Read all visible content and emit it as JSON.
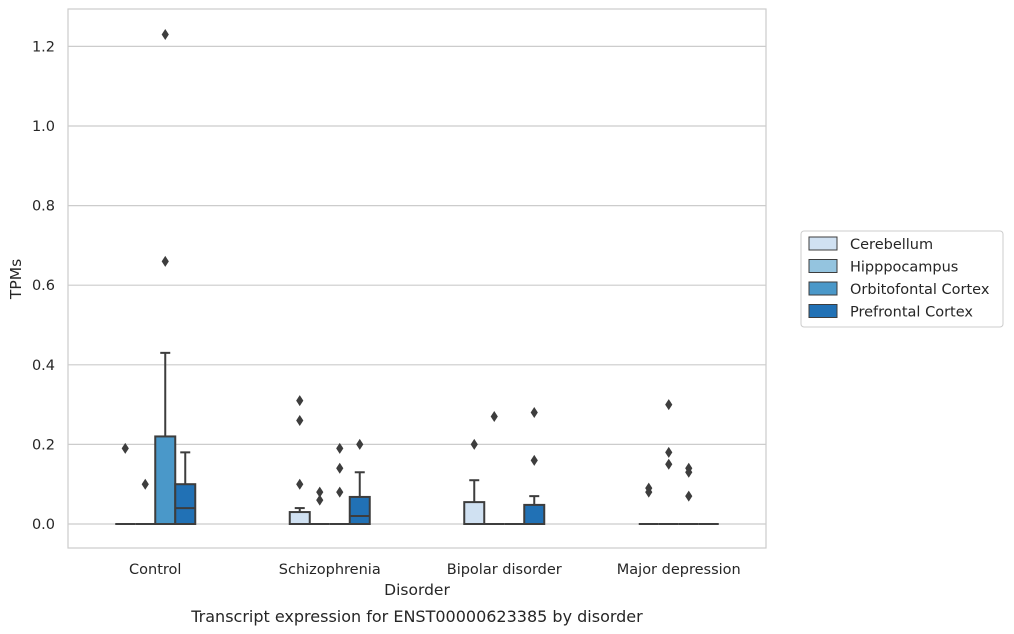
{
  "chart_data": {
    "type": "box",
    "xlabel": "Disorder",
    "ylabel": "TPMs",
    "caption": "Transcript expression for ENST00000623385 by disorder",
    "categories": [
      "Control",
      "Schizophrenia",
      "Bipolar disorder",
      "Major depression"
    ],
    "ylim": [
      -0.06,
      1.29
    ],
    "yticks": [
      0.0,
      0.2,
      0.4,
      0.6,
      0.8,
      1.0,
      1.2
    ],
    "ytick_labels": [
      "0.0",
      "0.2",
      "0.4",
      "0.6",
      "0.8",
      "1.0",
      "1.2"
    ],
    "grid": "horizontal",
    "legend_position": "right",
    "series": [
      {
        "name": "Cerebellum",
        "color": "#d0e1f2",
        "boxes": [
          {
            "category": "Control",
            "q1": 0.0,
            "median": 0.0,
            "q3": 0.0,
            "whisker_low": 0.0,
            "whisker_high": 0.0,
            "outliers": [
              0.19
            ]
          },
          {
            "category": "Schizophrenia",
            "q1": 0.0,
            "median": 0.0,
            "q3": 0.03,
            "whisker_low": 0.0,
            "whisker_high": 0.04,
            "outliers": [
              0.31,
              0.26,
              0.1
            ]
          },
          {
            "category": "Bipolar disorder",
            "q1": 0.0,
            "median": 0.0,
            "q3": 0.055,
            "whisker_low": 0.0,
            "whisker_high": 0.11,
            "outliers": [
              0.2
            ]
          },
          {
            "category": "Major depression",
            "q1": 0.0,
            "median": 0.0,
            "q3": 0.0,
            "whisker_low": 0.0,
            "whisker_high": 0.0,
            "outliers": [
              0.09,
              0.08
            ]
          }
        ]
      },
      {
        "name": "Hipppocampus",
        "color": "#94c4df",
        "boxes": [
          {
            "category": "Control",
            "q1": 0.0,
            "median": 0.0,
            "q3": 0.0,
            "whisker_low": 0.0,
            "whisker_high": 0.0,
            "outliers": [
              0.1
            ]
          },
          {
            "category": "Schizophrenia",
            "q1": 0.0,
            "median": 0.0,
            "q3": 0.0,
            "whisker_low": 0.0,
            "whisker_high": 0.0,
            "outliers": [
              0.08,
              0.06
            ]
          },
          {
            "category": "Bipolar disorder",
            "q1": 0.0,
            "median": 0.0,
            "q3": 0.0,
            "whisker_low": 0.0,
            "whisker_high": 0.0,
            "outliers": [
              0.27
            ]
          },
          {
            "category": "Major depression",
            "q1": 0.0,
            "median": 0.0,
            "q3": 0.0,
            "whisker_low": 0.0,
            "whisker_high": 0.0,
            "outliers": [
              0.3,
              0.18,
              0.15
            ]
          }
        ]
      },
      {
        "name": "Orbitofontal Cortex",
        "color": "#4a98c9",
        "boxes": [
          {
            "category": "Control",
            "q1": 0.0,
            "median": 0.0,
            "q3": 0.22,
            "whisker_low": 0.0,
            "whisker_high": 0.43,
            "outliers": [
              1.23,
              0.66
            ]
          },
          {
            "category": "Schizophrenia",
            "q1": 0.0,
            "median": 0.0,
            "q3": 0.0,
            "whisker_low": 0.0,
            "whisker_high": 0.0,
            "outliers": [
              0.19,
              0.14,
              0.08
            ]
          },
          {
            "category": "Bipolar disorder",
            "q1": 0.0,
            "median": 0.0,
            "q3": 0.0,
            "whisker_low": 0.0,
            "whisker_high": 0.0,
            "outliers": []
          },
          {
            "category": "Major depression",
            "q1": 0.0,
            "median": 0.0,
            "q3": 0.0,
            "whisker_low": 0.0,
            "whisker_high": 0.0,
            "outliers": [
              0.14,
              0.13,
              0.07
            ]
          }
        ]
      },
      {
        "name": "Prefrontal Cortex",
        "color": "#2171b5",
        "boxes": [
          {
            "category": "Control",
            "q1": 0.0,
            "median": 0.04,
            "q3": 0.1,
            "whisker_low": 0.0,
            "whisker_high": 0.18,
            "outliers": []
          },
          {
            "category": "Schizophrenia",
            "q1": 0.0,
            "median": 0.02,
            "q3": 0.068,
            "whisker_low": 0.0,
            "whisker_high": 0.13,
            "outliers": [
              0.2
            ]
          },
          {
            "category": "Bipolar disorder",
            "q1": 0.0,
            "median": 0.0,
            "q3": 0.048,
            "whisker_low": 0.0,
            "whisker_high": 0.07,
            "outliers": [
              0.28,
              0.16
            ]
          },
          {
            "category": "Major depression",
            "q1": 0.0,
            "median": 0.0,
            "q3": 0.0,
            "whisker_low": 0.0,
            "whisker_high": 0.0,
            "outliers": []
          }
        ]
      }
    ]
  }
}
